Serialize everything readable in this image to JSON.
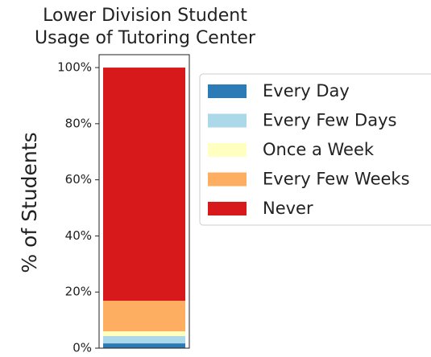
{
  "chart_data": {
    "type": "stacked_bar",
    "title": [
      "Lower Division Student",
      "Usage of Tutoring Center"
    ],
    "ylabel": "% of Students",
    "categories": [
      null
    ],
    "series": [
      {
        "name": "Every Day",
        "color": "#2c7bb6",
        "values": [
          1.7
        ]
      },
      {
        "name": "Every Few Days",
        "color": "#abd9e9",
        "values": [
          2.6
        ]
      },
      {
        "name": "Once a Week",
        "color": "#ffffbf",
        "values": [
          1.7
        ]
      },
      {
        "name": "Every Few Weeks",
        "color": "#fdae61",
        "values": [
          10.9
        ]
      },
      {
        "name": "Never",
        "color": "#d7191c",
        "values": [
          83.1
        ]
      }
    ],
    "ylim": [
      0,
      104.6
    ],
    "yticks": [
      {
        "value": 0,
        "label": "0%"
      },
      {
        "value": 20,
        "label": "20%"
      },
      {
        "value": 40,
        "label": "40%"
      },
      {
        "value": 60,
        "label": "60%"
      },
      {
        "value": 80,
        "label": "80%"
      },
      {
        "value": 100,
        "label": "100%"
      }
    ],
    "legend": "outside-right"
  }
}
